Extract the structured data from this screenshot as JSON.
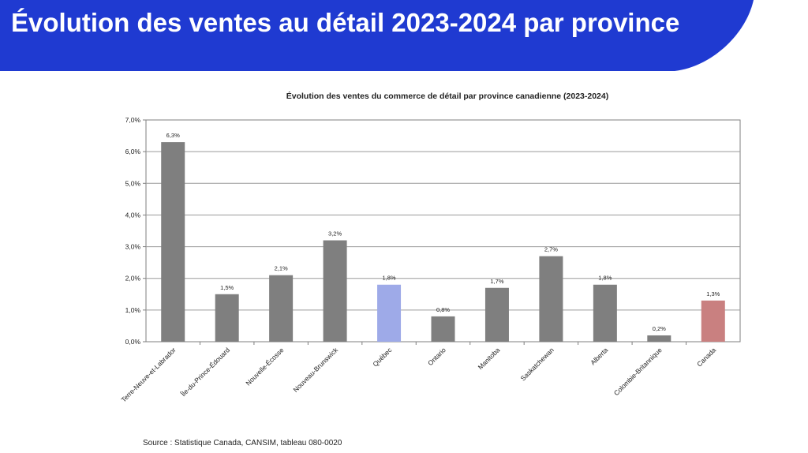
{
  "slide": {
    "title": "Évolution des ventes au détail 2023-2024 par province",
    "header_color": "#1f3ad1",
    "source": "Source : Statistique Canada, CANSIM, tableau 080-0020"
  },
  "chart_data": {
    "type": "bar",
    "title": "Évolution des ventes du commerce de détail par province canadienne (2023-2024)",
    "xlabel": "",
    "ylabel": "",
    "ylim": [
      0,
      7
    ],
    "ytick_values": [
      0,
      1,
      2,
      3,
      4,
      5,
      6,
      7
    ],
    "ytick_labels": [
      "0,0%",
      "1,0%",
      "2,0%",
      "3,0%",
      "4,0%",
      "5,0%",
      "6,0%",
      "7,0%"
    ],
    "grid": true,
    "categories": [
      "Terre-Neuve-et-Labrador",
      "Île-du-Prince-Édouard",
      "Nouvelle-Écosse",
      "Nouveau-Brunswick",
      "Québec",
      "Ontario",
      "Manitoba",
      "Saskatchewan",
      "Alberta",
      "Colombie-Britannique",
      "Canada"
    ],
    "values": [
      6.3,
      1.5,
      2.1,
      3.2,
      1.8,
      0.8,
      1.7,
      2.7,
      1.8,
      0.2,
      1.3
    ],
    "data_labels": [
      "6,3%",
      "1,5%",
      "2,1%",
      "3,2%",
      "1,8%",
      "0,8%",
      "1,7%",
      "2,7%",
      "1,8%",
      "0,2%",
      "1,3%"
    ],
    "colors": [
      "#7f7f7f",
      "#7f7f7f",
      "#7f7f7f",
      "#7f7f7f",
      "#9eaae8",
      "#7f7f7f",
      "#7f7f7f",
      "#7f7f7f",
      "#7f7f7f",
      "#7f7f7f",
      "#c98080"
    ]
  }
}
